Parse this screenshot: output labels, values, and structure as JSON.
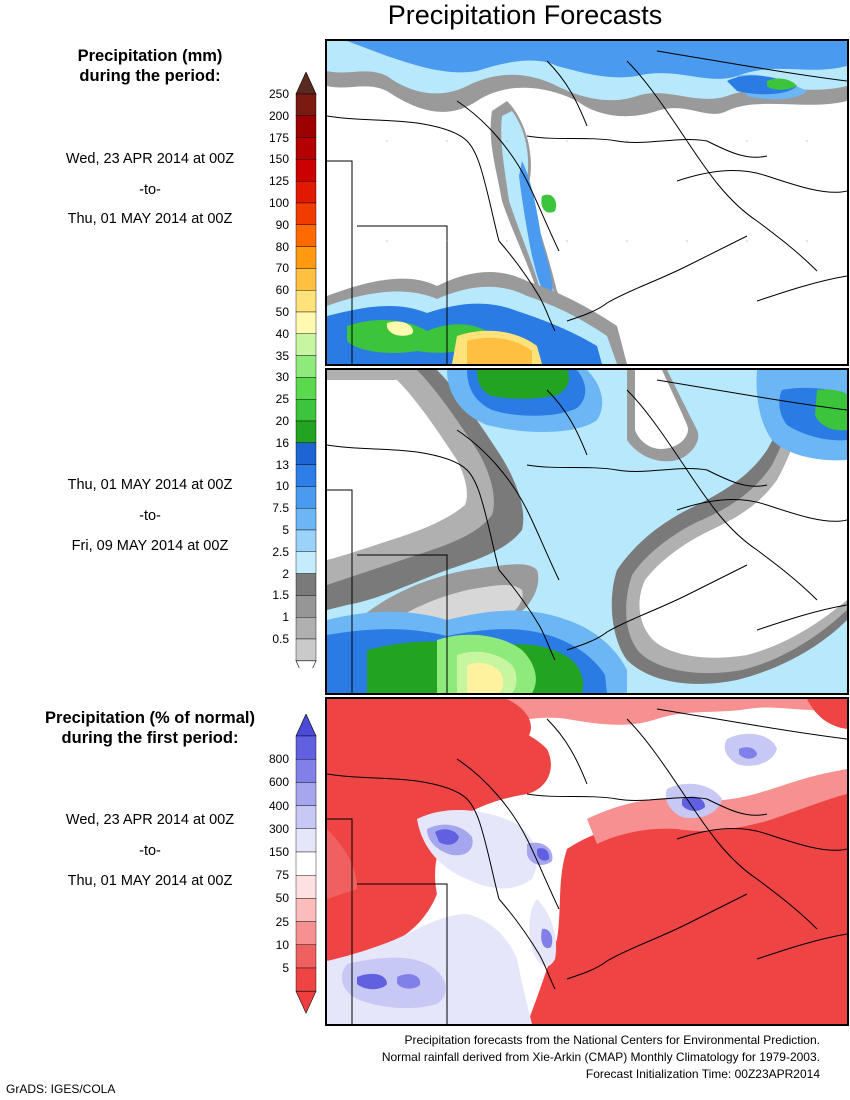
{
  "title": "Precipitation Forecasts",
  "legend_mm": {
    "heading_line1": "Precipitation (mm)",
    "heading_line2": "during the period:",
    "labels": [
      "250",
      "200",
      "175",
      "150",
      "125",
      "100",
      "90",
      "80",
      "70",
      "60",
      "50",
      "40",
      "35",
      "30",
      "25",
      "20",
      "16",
      "13",
      "10",
      "7.5",
      "5",
      "2.5",
      "2",
      "1.5",
      "1",
      "0.5"
    ],
    "colors": [
      "#7a1a10",
      "#9c0000",
      "#b40000",
      "#cd0000",
      "#e01a00",
      "#f03c00",
      "#ff6a00",
      "#ff9a10",
      "#ffbf40",
      "#ffe27a",
      "#fffab0",
      "#c8f5a0",
      "#8eea7a",
      "#5ad84e",
      "#3cc43c",
      "#22a322",
      "#1e64d2",
      "#2e7ee8",
      "#4a9af0",
      "#6cb6f5",
      "#9bd2fa",
      "#c4ecfc",
      "#7a7a7a",
      "#969696",
      "#b0b0b0",
      "#cacaca"
    ],
    "top_cap_color": "#5a2a20"
  },
  "period1": {
    "start": "Wed, 23 APR 2014 at 00Z",
    "sep": "-to-",
    "end": "Thu, 01 MAY 2014 at 00Z"
  },
  "period2": {
    "start": "Thu, 01 MAY 2014 at 00Z",
    "sep": "-to-",
    "end": "Fri, 09 MAY 2014 at 00Z"
  },
  "legend_pct": {
    "heading_line1": "Precipitation (% of normal)",
    "heading_line2": "during the first period:",
    "labels": [
      "800",
      "600",
      "400",
      "300",
      "150",
      "75",
      "50",
      "25",
      "10",
      "5"
    ],
    "colors": [
      "#6060e0",
      "#8080e8",
      "#a6a6ee",
      "#c8c8f5",
      "#e6e6fb",
      "#ffffff",
      "#fde0e0",
      "#fbbcbc",
      "#f79090",
      "#f06060",
      "#ee4444"
    ],
    "top_cap_color": "#4b4bd8",
    "bottom_cap_color": "#ee3e3e"
  },
  "period3": {
    "start": "Wed, 23 APR 2014 at 00Z",
    "sep": "-to-",
    "end": "Thu, 01 MAY 2014 at 00Z"
  },
  "footer": {
    "line1": "Precipitation forecasts from the National Centers for Environmental Prediction.",
    "line2": "Normal rainfall derived from Xie-Arkin (CMAP) Monthly Climatology for 1979-2003.",
    "line3": "Forecast Initialization Time: 00Z23APR2014"
  },
  "credit": "GrADS: IGES/COLA"
}
